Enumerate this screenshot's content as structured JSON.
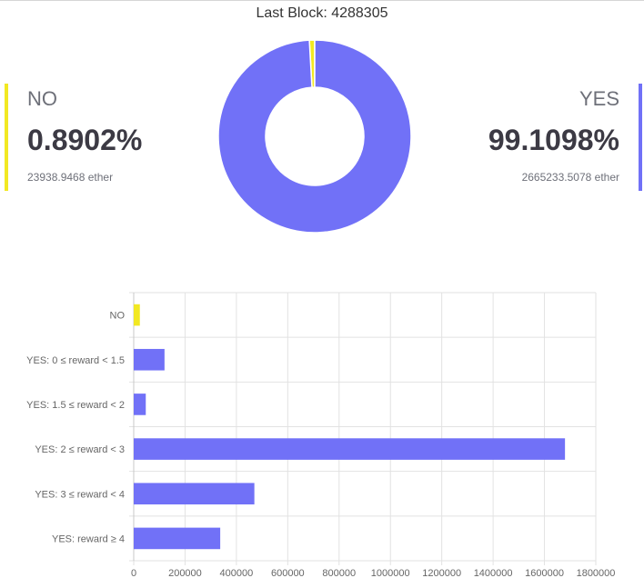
{
  "header": {
    "last_block": "Last Block: 4288305"
  },
  "no_panel": {
    "label": "NO",
    "percent": "0.8902%",
    "ether": "23938.9468 ether",
    "color": "#f2e822"
  },
  "yes_panel": {
    "label": "YES",
    "percent": "99.1098%",
    "ether": "2665233.5078 ether",
    "color": "#7171f7"
  },
  "chart_data": [
    {
      "type": "pie",
      "variant": "doughnut",
      "categories": [
        "NO",
        "YES"
      ],
      "values": [
        0.8902,
        99.1098
      ],
      "colors": [
        "#f2e822",
        "#7171f7"
      ]
    },
    {
      "type": "bar",
      "orientation": "horizontal",
      "categories": [
        "NO",
        "YES: 0 ≤ reward < 1.5",
        "YES: 1.5 ≤ reward < 2",
        "YES: 2 ≤ reward < 3",
        "YES: 3 ≤ reward < 4",
        "YES: reward ≥ 4"
      ],
      "values": [
        23938.9468,
        120000,
        47000,
        1680000,
        470000,
        337000
      ],
      "colors": [
        "#f2e822",
        "#7171f7",
        "#7171f7",
        "#7171f7",
        "#7171f7",
        "#7171f7"
      ],
      "xlim": [
        0,
        1800000
      ],
      "xticks": [
        0,
        200000,
        400000,
        600000,
        800000,
        1000000,
        1200000,
        1400000,
        1600000,
        1800000
      ],
      "grid": true
    }
  ]
}
